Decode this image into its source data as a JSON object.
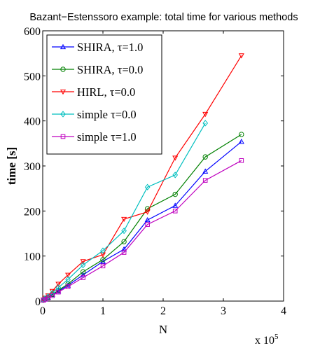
{
  "chart_data": {
    "type": "line",
    "title": "Bazant−Estenssoro example: total time for various methods",
    "xlabel": "N",
    "ylabel": "time [s]",
    "x_multiplier_label": "x 10",
    "x_multiplier_exponent": "5",
    "xlim": [
      0,
      4
    ],
    "ylim": [
      0,
      600
    ],
    "xticks": [
      0,
      1,
      2,
      3,
      4
    ],
    "yticks": [
      0,
      100,
      200,
      300,
      400,
      500,
      600
    ],
    "grid": false,
    "legend_position": "top-left",
    "series": [
      {
        "name": "SHIRA, τ=1.0",
        "color": "#0000ff",
        "marker": "triangle-up",
        "x": [
          0.01,
          0.04,
          0.09,
          0.16,
          0.26,
          0.42,
          0.67,
          1.0,
          1.35,
          1.74,
          2.2,
          2.7,
          3.3
        ],
        "y": [
          2,
          4,
          8,
          14,
          22,
          35,
          58,
          88,
          115,
          180,
          212,
          288,
          354
        ]
      },
      {
        "name": "SHIRA, τ=0.0",
        "color": "#008000",
        "marker": "circle",
        "x": [
          0.01,
          0.04,
          0.09,
          0.16,
          0.26,
          0.42,
          0.67,
          1.0,
          1.35,
          1.74,
          2.2,
          2.7,
          3.3
        ],
        "y": [
          2,
          5,
          9,
          15,
          24,
          38,
          65,
          92,
          132,
          205,
          237,
          320,
          370
        ]
      },
      {
        "name": "HIRL, τ=0.0",
        "color": "#ff0000",
        "marker": "triangle-down",
        "x": [
          0.01,
          0.04,
          0.09,
          0.16,
          0.26,
          0.42,
          0.67,
          1.0,
          1.35,
          1.74,
          2.2,
          2.7,
          3.3
        ],
        "y": [
          3,
          7,
          12,
          22,
          38,
          58,
          88,
          103,
          182,
          198,
          318,
          415,
          545
        ]
      },
      {
        "name": "simple τ=0.0",
        "color": "#00bfbf",
        "marker": "diamond",
        "x": [
          0.01,
          0.04,
          0.09,
          0.16,
          0.26,
          0.42,
          0.67,
          1.0,
          1.35,
          1.74,
          2.2,
          2.7
        ],
        "y": [
          3,
          6,
          10,
          18,
          30,
          48,
          80,
          112,
          156,
          253,
          280,
          395
        ]
      },
      {
        "name": "simple τ=1.0",
        "color": "#bf00bf",
        "marker": "square",
        "x": [
          0.01,
          0.04,
          0.09,
          0.16,
          0.26,
          0.42,
          0.67,
          1.0,
          1.35,
          1.74,
          2.2,
          2.7,
          3.3
        ],
        "y": [
          2,
          4,
          7,
          12,
          20,
          32,
          52,
          78,
          108,
          170,
          200,
          268,
          312
        ]
      }
    ]
  }
}
